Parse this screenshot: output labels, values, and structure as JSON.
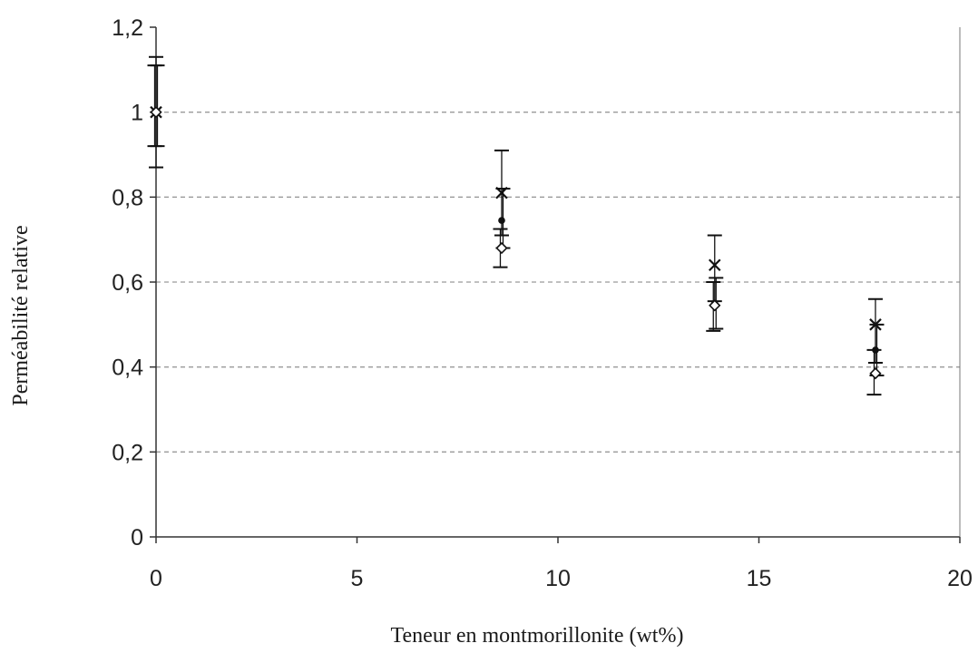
{
  "chart_data": {
    "type": "scatter",
    "title": "",
    "xlabel": "Teneur en montmorillonite (wt%)",
    "ylabel": "Perméabilité relative",
    "xlim": [
      0,
      20
    ],
    "ylim": [
      0,
      1.2
    ],
    "x_ticks": [
      "0",
      "5",
      "10",
      "15",
      "20"
    ],
    "y_ticks": [
      "0",
      "0,2",
      "0,4",
      "0,6",
      "0,8",
      "1",
      "1,2"
    ],
    "grid": "horizontal dashed",
    "legend": "none",
    "colors": {
      "marks": "#111111",
      "grid": "#9a9a9a",
      "axis": "#333333"
    },
    "series": [
      {
        "marker": "cross",
        "points": [
          {
            "x": 0,
            "y": 1.0,
            "err_low": 0.87,
            "err_high": 1.13
          },
          {
            "x": 8.6,
            "y": 0.81,
            "err_low": 0.71,
            "err_high": 0.91
          },
          {
            "x": 13.9,
            "y": 0.64,
            "err_low": 0.555,
            "err_high": 0.71
          },
          {
            "x": 17.9,
            "y": 0.5,
            "err_low": 0.41,
            "err_high": 0.56
          }
        ]
      },
      {
        "marker": "filled-circle",
        "points": [
          {
            "x": 0,
            "y": 1.0,
            "err_low": 0.92,
            "err_high": 1.11
          },
          {
            "x": 8.6,
            "y": 0.745,
            "err_low": 0.68,
            "err_high": 0.82
          },
          {
            "x": 13.9,
            "y": 0.55,
            "err_low": 0.49,
            "err_high": 0.61
          },
          {
            "x": 17.9,
            "y": 0.44,
            "err_low": 0.38,
            "err_high": 0.5
          }
        ]
      },
      {
        "marker": "open-diamond",
        "points": [
          {
            "x": 0,
            "y": 1.0,
            "err_low": 0.92,
            "err_high": 1.11
          },
          {
            "x": 8.6,
            "y": 0.68,
            "err_low": 0.635,
            "err_high": 0.725
          },
          {
            "x": 13.9,
            "y": 0.545,
            "err_low": 0.485,
            "err_high": 0.6
          },
          {
            "x": 17.9,
            "y": 0.385,
            "err_low": 0.335,
            "err_high": 0.44
          }
        ]
      }
    ]
  }
}
